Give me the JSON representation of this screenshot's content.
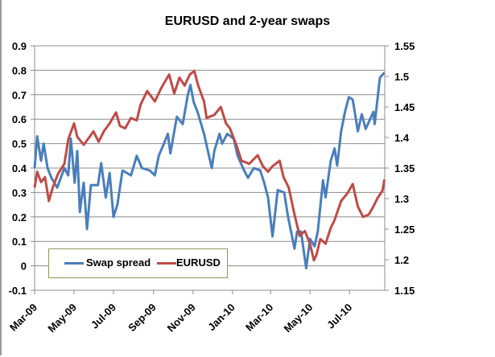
{
  "chart_data": {
    "type": "line",
    "title": "EURUSD and 2-year swaps",
    "xlabel": "",
    "ylabel": "",
    "x_ticks": [
      "Mar-09",
      "May-09",
      "Jul-09",
      "Sep-09",
      "Nov-09",
      "Jan-10",
      "Mar-10",
      "May-10",
      "Jul-10"
    ],
    "x_tick_dates": [
      "2009-03-01",
      "2009-05-01",
      "2009-07-01",
      "2009-09-01",
      "2009-11-01",
      "2010-01-01",
      "2010-03-01",
      "2010-05-01",
      "2010-07-01"
    ],
    "xlim": [
      "2009-03-01",
      "2010-09-01"
    ],
    "y_left": {
      "lim": [
        -0.1,
        0.9
      ],
      "ticks": [
        "-0.1",
        "0",
        "0.1",
        "0.2",
        "0.3",
        "0.4",
        "0.5",
        "0.6",
        "0.7",
        "0.8",
        "0.9"
      ]
    },
    "y_right": {
      "lim": [
        1.15,
        1.55
      ],
      "ticks": [
        "1.15",
        "1.2",
        "1.25",
        "1.3",
        "1.35",
        "1.4",
        "1.45",
        "1.5",
        "1.55"
      ]
    },
    "grid": true,
    "legend": "bottom-left",
    "series": [
      {
        "name": "Swap spread",
        "axis": "left",
        "color": "#4a7ebb",
        "x": [
          "2009-03-01",
          "2009-03-05",
          "2009-03-11",
          "2009-03-15",
          "2009-03-21",
          "2009-03-27",
          "2009-04-05",
          "2009-04-16",
          "2009-04-22",
          "2009-04-26",
          "2009-05-02",
          "2009-05-06",
          "2009-05-10",
          "2009-05-16",
          "2009-05-21",
          "2009-05-27",
          "2009-06-07",
          "2009-06-12",
          "2009-06-19",
          "2009-06-25",
          "2009-07-01",
          "2009-07-07",
          "2009-07-15",
          "2009-07-28",
          "2009-08-06",
          "2009-08-14",
          "2009-08-26",
          "2009-09-03",
          "2009-09-09",
          "2009-09-17",
          "2009-09-23",
          "2009-09-27",
          "2009-10-07",
          "2009-10-16",
          "2009-10-24",
          "2009-10-28",
          "2009-11-02",
          "2009-11-08",
          "2009-11-18",
          "2009-11-30",
          "2009-12-04",
          "2009-12-12",
          "2009-12-16",
          "2009-12-24",
          "2010-01-03",
          "2010-01-09",
          "2010-01-19",
          "2010-01-25",
          "2010-02-03",
          "2010-02-13",
          "2010-02-19",
          "2010-02-25",
          "2010-03-04",
          "2010-03-12",
          "2010-03-22",
          "2010-03-28",
          "2010-04-07",
          "2010-04-11",
          "2010-04-17",
          "2010-04-25",
          "2010-05-01",
          "2010-05-08",
          "2010-05-13",
          "2010-05-21",
          "2010-05-25",
          "2010-06-02",
          "2010-06-08",
          "2010-06-12",
          "2010-06-18",
          "2010-06-24",
          "2010-06-30",
          "2010-07-06",
          "2010-07-14",
          "2010-07-20",
          "2010-07-26",
          "2010-08-07",
          "2010-08-09",
          "2010-08-15",
          "2010-08-17",
          "2010-08-24"
        ],
        "values": [
          0.4,
          0.53,
          0.43,
          0.5,
          0.4,
          0.36,
          0.32,
          0.4,
          0.37,
          0.52,
          0.34,
          0.47,
          0.22,
          0.34,
          0.15,
          0.33,
          0.33,
          0.42,
          0.28,
          0.38,
          0.2,
          0.25,
          0.39,
          0.37,
          0.45,
          0.4,
          0.39,
          0.37,
          0.45,
          0.5,
          0.54,
          0.46,
          0.61,
          0.58,
          0.7,
          0.74,
          0.67,
          0.63,
          0.54,
          0.4,
          0.47,
          0.54,
          0.5,
          0.54,
          0.52,
          0.45,
          0.39,
          0.36,
          0.4,
          0.39,
          0.34,
          0.28,
          0.12,
          0.31,
          0.3,
          0.2,
          0.07,
          0.14,
          0.14,
          -0.01,
          0.11,
          0.08,
          0.14,
          0.35,
          0.28,
          0.43,
          0.48,
          0.41,
          0.55,
          0.63,
          0.69,
          0.68,
          0.55,
          0.62,
          0.56,
          0.63,
          0.58,
          0.72,
          0.77,
          0.79
        ]
      },
      {
        "name": "EURUSD",
        "axis": "right",
        "color": "#be4b48",
        "x": [
          "2009-03-01",
          "2009-03-05",
          "2009-03-11",
          "2009-03-17",
          "2009-03-23",
          "2009-03-29",
          "2009-04-06",
          "2009-04-16",
          "2009-04-22",
          "2009-05-01",
          "2009-05-06",
          "2009-05-16",
          "2009-05-25",
          "2009-05-31",
          "2009-06-08",
          "2009-06-16",
          "2009-06-25",
          "2009-07-05",
          "2009-07-11",
          "2009-07-19",
          "2009-07-28",
          "2009-08-06",
          "2009-08-12",
          "2009-08-22",
          "2009-09-03",
          "2009-09-13",
          "2009-09-25",
          "2009-10-03",
          "2009-10-11",
          "2009-10-19",
          "2009-10-27",
          "2009-11-03",
          "2009-11-09",
          "2009-11-18",
          "2009-11-22",
          "2009-12-04",
          "2009-12-14",
          "2009-12-22",
          "2009-12-28",
          "2010-01-07",
          "2010-01-15",
          "2010-01-27",
          "2010-02-09",
          "2010-02-17",
          "2010-02-25",
          "2010-03-04",
          "2010-03-15",
          "2010-03-21",
          "2010-03-29",
          "2010-04-07",
          "2010-04-15",
          "2010-04-23",
          "2010-05-01",
          "2010-05-07",
          "2010-05-11",
          "2010-05-17",
          "2010-05-25",
          "2010-06-02",
          "2010-06-08",
          "2010-06-18",
          "2010-06-28",
          "2010-07-06",
          "2010-07-14",
          "2010-07-22",
          "2010-07-31",
          "2010-08-07",
          "2010-08-13",
          "2010-08-21",
          "2010-08-24"
        ],
        "values": [
          1.318,
          1.344,
          1.327,
          1.335,
          1.296,
          1.318,
          1.34,
          1.357,
          1.397,
          1.423,
          1.401,
          1.388,
          1.401,
          1.41,
          1.393,
          1.41,
          1.423,
          1.441,
          1.419,
          1.415,
          1.432,
          1.428,
          1.454,
          1.476,
          1.459,
          1.481,
          1.503,
          1.472,
          1.498,
          1.485,
          1.503,
          1.509,
          1.485,
          1.459,
          1.432,
          1.437,
          1.45,
          1.423,
          1.415,
          1.388,
          1.362,
          1.357,
          1.371,
          1.353,
          1.344,
          1.353,
          1.362,
          1.335,
          1.318,
          1.274,
          1.239,
          1.247,
          1.226,
          1.199,
          1.208,
          1.234,
          1.226,
          1.252,
          1.265,
          1.296,
          1.309,
          1.324,
          1.287,
          1.27,
          1.274,
          1.287,
          1.3,
          1.313,
          1.331
        ]
      }
    ]
  }
}
